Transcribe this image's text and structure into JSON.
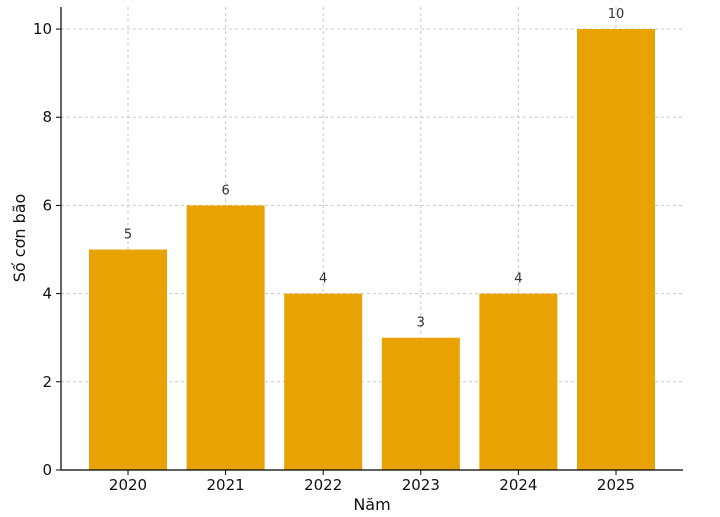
{
  "chart_data": {
    "type": "bar",
    "title": "",
    "xlabel": "Năm",
    "ylabel": "Số cơn bão",
    "categories": [
      "2020",
      "2021",
      "2022",
      "2023",
      "2024",
      "2025"
    ],
    "values": [
      5,
      6,
      4,
      3,
      4,
      10
    ],
    "data_labels": [
      "5",
      "6",
      "4",
      "3",
      "4",
      "10"
    ],
    "ylim": [
      0,
      10.5
    ],
    "yticks": [
      "0",
      "2",
      "4",
      "6",
      "8",
      "10"
    ],
    "grid": true,
    "bar_color": "#E8A202",
    "grid_color": "#c8c8c8"
  }
}
